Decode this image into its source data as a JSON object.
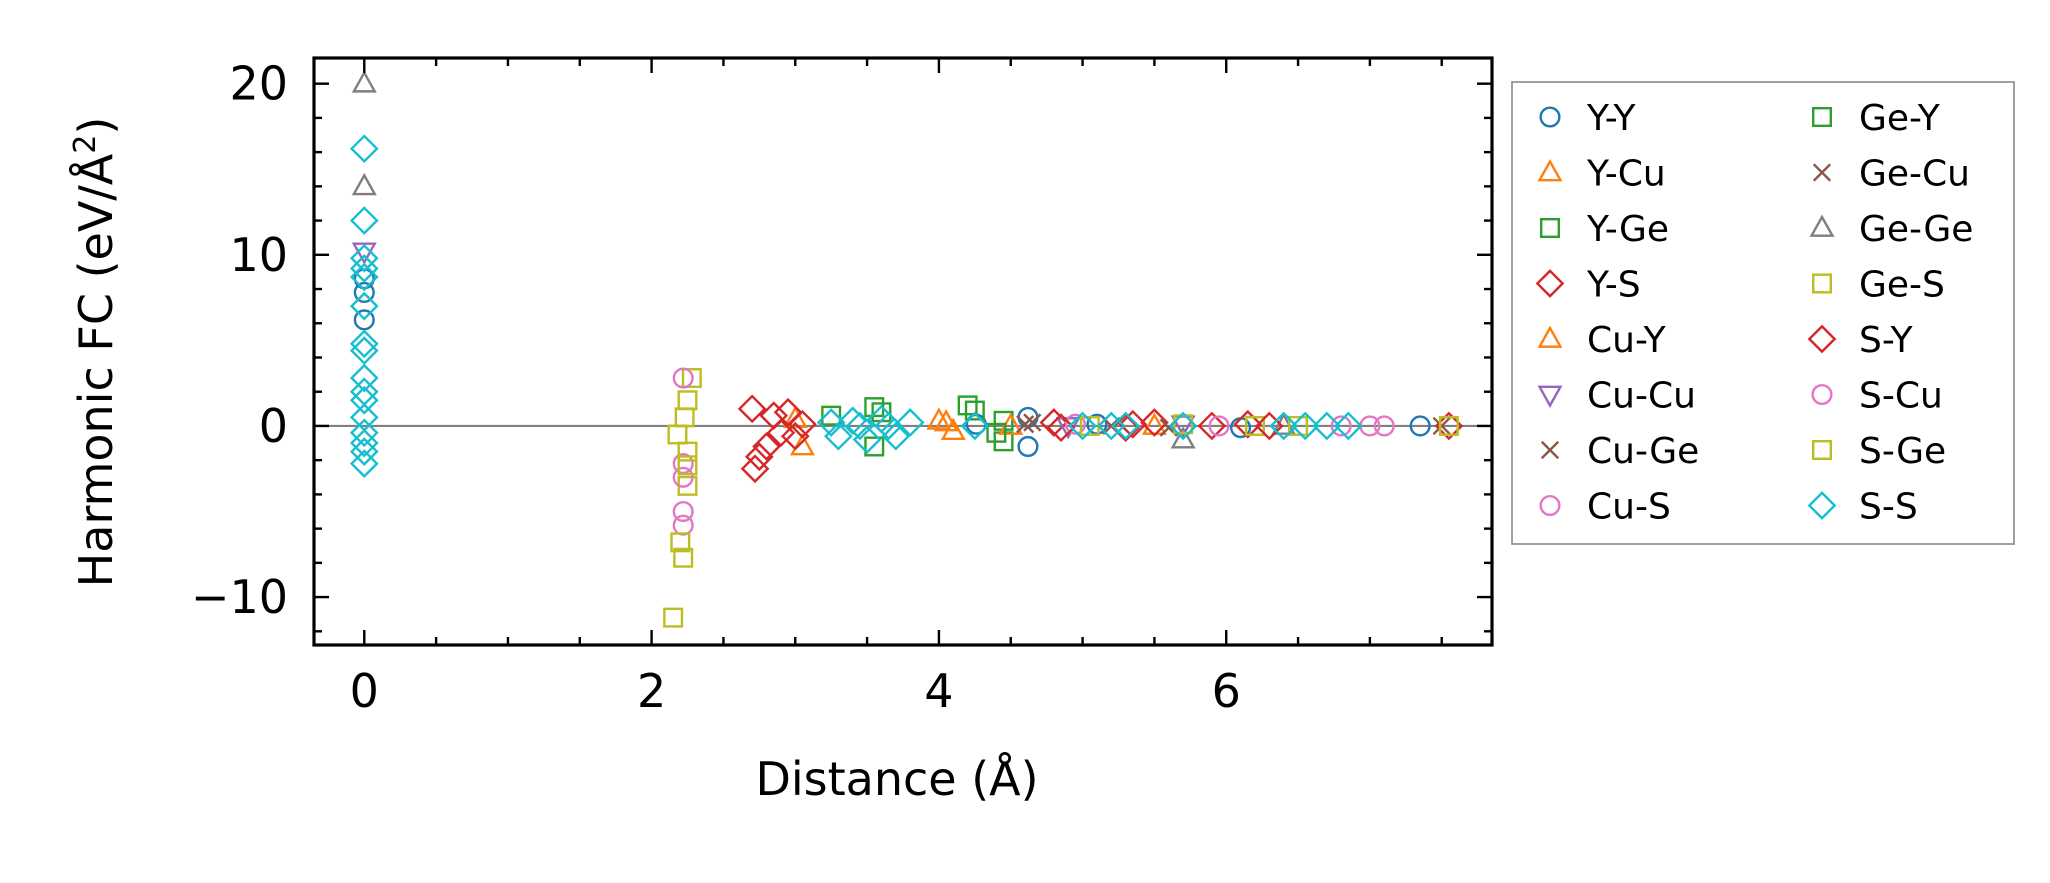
{
  "chart_data": {
    "type": "scatter",
    "xlabel": "Distance (Å)",
    "ylabel_main": "Harmonic FC (eV/Å",
    "ylabel_sup": "2",
    "ylabel_close": ")",
    "xlim": [
      -0.35,
      7.85
    ],
    "ylim": [
      -12.8,
      21.5
    ],
    "xticks": [
      0,
      2,
      4,
      6
    ],
    "xtick_labels": [
      "0",
      "2",
      "4",
      "6"
    ],
    "yticks": [
      -10,
      0,
      10,
      20
    ],
    "ytick_labels": [
      "−10",
      "0",
      "10",
      "20"
    ],
    "zero_line": true,
    "legend_position": "outside-right",
    "series": [
      {
        "name": "Y-Y",
        "marker": "circle",
        "color": "#1f77b4",
        "points": [
          [
            0,
            6.2
          ],
          [
            0,
            7.8
          ],
          [
            0,
            8.6
          ],
          [
            4.26,
            0.1
          ],
          [
            4.62,
            0.5
          ],
          [
            4.62,
            -1.2
          ],
          [
            5.1,
            0.1
          ],
          [
            6.1,
            -0.1
          ],
          [
            7.35,
            0.0
          ]
        ]
      },
      {
        "name": "Y-Cu",
        "marker": "triangle-up",
        "color": "#ff7f0e",
        "points": [
          [
            3.05,
            -1.2
          ],
          [
            3.0,
            0.4
          ],
          [
            4.05,
            0.2
          ],
          [
            4.1,
            -0.3
          ],
          [
            5.5,
            0.0
          ]
        ]
      },
      {
        "name": "Y-Ge",
        "marker": "square",
        "color": "#2ca02c",
        "points": [
          [
            3.25,
            0.6
          ],
          [
            3.55,
            1.1
          ],
          [
            3.55,
            -1.2
          ],
          [
            4.25,
            0.9
          ],
          [
            4.45,
            -0.9
          ],
          [
            4.45,
            0.3
          ]
        ]
      },
      {
        "name": "Y-S",
        "marker": "diamond",
        "color": "#d62728",
        "points": [
          [
            2.7,
            1.0
          ],
          [
            2.72,
            -2.5
          ],
          [
            2.8,
            -1.2
          ],
          [
            2.85,
            0.6
          ],
          [
            2.9,
            -0.4
          ],
          [
            3.05,
            0.1
          ],
          [
            4.8,
            0.2
          ],
          [
            5.3,
            -0.1
          ],
          [
            5.5,
            0.2
          ],
          [
            6.15,
            0.1
          ],
          [
            7.55,
            0.0
          ]
        ]
      },
      {
        "name": "Cu-Y",
        "marker": "triangle-up",
        "color": "#ff7f0e",
        "points": [
          [
            4.0,
            0.3
          ],
          [
            4.5,
            0.0
          ]
        ]
      },
      {
        "name": "Cu-Cu",
        "marker": "triangle-down",
        "color": "#9467bd",
        "points": [
          [
            0,
            10.2
          ],
          [
            4.9,
            0.0
          ],
          [
            5.7,
            0.1
          ]
        ]
      },
      {
        "name": "Cu-Ge",
        "marker": "x",
        "color": "#8c564b",
        "points": [
          [
            4.6,
            0.1
          ],
          [
            5.2,
            0.0
          ],
          [
            7.5,
            0.0
          ]
        ]
      },
      {
        "name": "Cu-S",
        "marker": "circle",
        "color": "#e377c2",
        "points": [
          [
            2.22,
            -5.0
          ],
          [
            2.22,
            -5.8
          ],
          [
            4.95,
            0.1
          ],
          [
            7.0,
            0.0
          ],
          [
            7.1,
            0.0
          ]
        ]
      },
      {
        "name": "Ge-Y",
        "marker": "square",
        "color": "#2ca02c",
        "points": [
          [
            3.6,
            0.8
          ],
          [
            4.2,
            1.2
          ],
          [
            4.4,
            -0.4
          ]
        ]
      },
      {
        "name": "Ge-Cu",
        "marker": "x",
        "color": "#8c564b",
        "points": [
          [
            4.65,
            0.2
          ],
          [
            5.6,
            -0.1
          ]
        ]
      },
      {
        "name": "Ge-Ge",
        "marker": "triangle-up",
        "color": "#7f7f7f",
        "points": [
          [
            0,
            20.0
          ],
          [
            0,
            14.0
          ],
          [
            5.7,
            -0.8
          ],
          [
            6.4,
            0.0
          ]
        ]
      },
      {
        "name": "Ge-S",
        "marker": "square",
        "color": "#bcbd22",
        "points": [
          [
            2.15,
            -11.2
          ],
          [
            2.22,
            -7.7
          ],
          [
            2.2,
            -6.8
          ],
          [
            2.25,
            -3.5
          ],
          [
            2.18,
            -0.5
          ],
          [
            2.28,
            2.8
          ],
          [
            2.25,
            1.5
          ],
          [
            5.7,
            0.1
          ],
          [
            6.2,
            0.0
          ],
          [
            7.55,
            0.0
          ]
        ]
      },
      {
        "name": "S-Y",
        "marker": "diamond",
        "color": "#d62728",
        "points": [
          [
            2.75,
            -1.8
          ],
          [
            2.95,
            0.8
          ],
          [
            3.0,
            -0.6
          ],
          [
            4.85,
            -0.1
          ],
          [
            5.35,
            0.1
          ],
          [
            5.9,
            0.0
          ],
          [
            6.3,
            0.0
          ]
        ]
      },
      {
        "name": "S-Cu",
        "marker": "circle",
        "color": "#e377c2",
        "points": [
          [
            2.22,
            2.8
          ],
          [
            2.22,
            -2.2
          ],
          [
            2.22,
            -3.0
          ],
          [
            5.95,
            0.0
          ],
          [
            6.8,
            0.0
          ]
        ]
      },
      {
        "name": "S-Ge",
        "marker": "square",
        "color": "#bcbd22",
        "points": [
          [
            2.25,
            -1.5
          ],
          [
            2.25,
            -2.3
          ],
          [
            2.23,
            0.5
          ],
          [
            5.05,
            0.0
          ],
          [
            6.5,
            0.0
          ]
        ]
      },
      {
        "name": "S-S",
        "marker": "diamond",
        "color": "#17becf",
        "points": [
          [
            0,
            16.2
          ],
          [
            0,
            12.0
          ],
          [
            0,
            9.8
          ],
          [
            0,
            9.2
          ],
          [
            0,
            8.7
          ],
          [
            0,
            7.0
          ],
          [
            0,
            4.8
          ],
          [
            0,
            4.4
          ],
          [
            0,
            2.8
          ],
          [
            0,
            2.0
          ],
          [
            0,
            1.5
          ],
          [
            0,
            0.5
          ],
          [
            0,
            -0.4
          ],
          [
            0,
            -1.0
          ],
          [
            0,
            -1.5
          ],
          [
            0,
            -2.2
          ],
          [
            3.25,
            0.2
          ],
          [
            3.3,
            -0.6
          ],
          [
            3.4,
            0.3
          ],
          [
            3.5,
            -0.8
          ],
          [
            3.6,
            0.4
          ],
          [
            3.7,
            -0.6
          ],
          [
            3.8,
            0.2
          ],
          [
            3.45,
            0.0
          ],
          [
            3.65,
            0.0
          ],
          [
            4.25,
            0.0
          ],
          [
            5.0,
            0.0
          ],
          [
            5.2,
            0.0
          ],
          [
            5.3,
            0.0
          ],
          [
            5.7,
            0.0
          ],
          [
            6.4,
            0.0
          ],
          [
            6.55,
            0.0
          ],
          [
            6.7,
            0.0
          ],
          [
            6.85,
            0.0
          ]
        ]
      }
    ],
    "legend_order": [
      "Y-Y",
      "Y-Cu",
      "Y-Ge",
      "Y-S",
      "Cu-Y",
      "Cu-Cu",
      "Cu-Ge",
      "Cu-S",
      "Ge-Y",
      "Ge-Cu",
      "Ge-Ge",
      "Ge-S",
      "S-Y",
      "S-Cu",
      "S-Ge",
      "S-S"
    ]
  }
}
